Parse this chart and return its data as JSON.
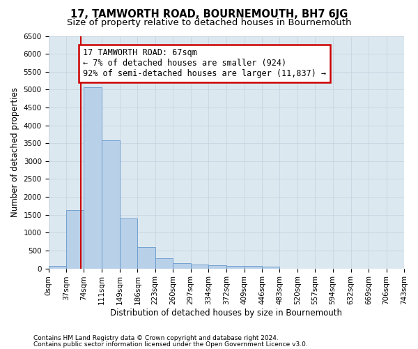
{
  "title": "17, TAMWORTH ROAD, BOURNEMOUTH, BH7 6JG",
  "subtitle": "Size of property relative to detached houses in Bournemouth",
  "xlabel": "Distribution of detached houses by size in Bournemouth",
  "ylabel": "Number of detached properties",
  "footnote1": "Contains HM Land Registry data © Crown copyright and database right 2024.",
  "footnote2": "Contains public sector information licensed under the Open Government Licence v3.0.",
  "bin_edges": [
    0,
    37,
    74,
    111,
    149,
    186,
    223,
    260,
    297,
    334,
    372,
    409,
    446,
    483,
    520,
    557,
    594,
    632,
    669,
    706,
    743
  ],
  "bar_heights": [
    75,
    1640,
    5070,
    3580,
    1390,
    590,
    290,
    145,
    115,
    80,
    75,
    65,
    50,
    0,
    0,
    0,
    0,
    0,
    0,
    0
  ],
  "bar_color": "#b8d0e8",
  "bar_edge_color": "#6699cc",
  "property_size": 67,
  "property_line_color": "#cc0000",
  "annotation_line1": "17 TAMWORTH ROAD: 67sqm",
  "annotation_line2": "← 7% of detached houses are smaller (924)",
  "annotation_line3": "92% of semi-detached houses are larger (11,837) →",
  "annotation_box_color": "#ffffff",
  "annotation_box_edge_color": "#cc0000",
  "ylim": [
    0,
    6500
  ],
  "yticks": [
    0,
    500,
    1000,
    1500,
    2000,
    2500,
    3000,
    3500,
    4000,
    4500,
    5000,
    5500,
    6000,
    6500
  ],
  "grid_color": "#c8d4e0",
  "bg_color": "#dce8f0",
  "title_fontsize": 10.5,
  "subtitle_fontsize": 9.5,
  "axis_label_fontsize": 8.5,
  "tick_label_fontsize": 7.5,
  "annotation_fontsize": 8.5,
  "footnote_fontsize": 6.5
}
